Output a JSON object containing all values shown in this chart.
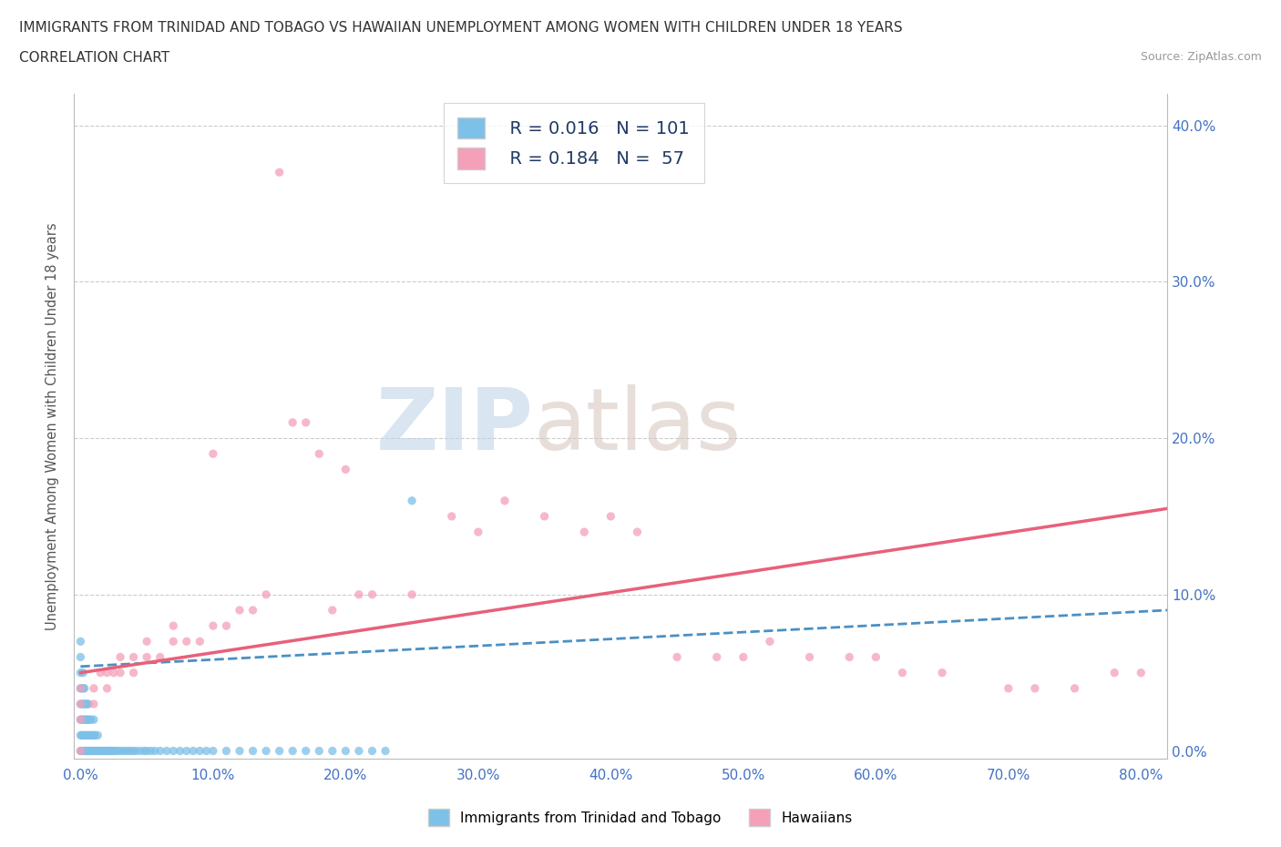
{
  "title_line1": "IMMIGRANTS FROM TRINIDAD AND TOBAGO VS HAWAIIAN UNEMPLOYMENT AMONG WOMEN WITH CHILDREN UNDER 18 YEARS",
  "title_line2": "CORRELATION CHART",
  "source": "Source: ZipAtlas.com",
  "ylabel_label": "Unemployment Among Women with Children Under 18 years",
  "legend_label1": "Immigrants from Trinidad and Tobago",
  "legend_label2": "Hawaiians",
  "R1": "0.016",
  "N1": "101",
  "R2": "0.184",
  "N2": "57",
  "blue_color": "#7dc0e8",
  "pink_color": "#f4a0b8",
  "trend_blue_color": "#4a90c4",
  "trend_pink_color": "#e8607a",
  "watermark_zip_color": "#c5d8ea",
  "watermark_atlas_color": "#d8c8c0",
  "blue_scatter_x": [
    0.0,
    0.0,
    0.0,
    0.0,
    0.0,
    0.0,
    0.0,
    0.0,
    0.001,
    0.001,
    0.001,
    0.001,
    0.001,
    0.002,
    0.002,
    0.002,
    0.002,
    0.002,
    0.002,
    0.003,
    0.003,
    0.003,
    0.003,
    0.003,
    0.004,
    0.004,
    0.004,
    0.004,
    0.005,
    0.005,
    0.005,
    0.005,
    0.006,
    0.006,
    0.006,
    0.006,
    0.007,
    0.007,
    0.007,
    0.008,
    0.008,
    0.008,
    0.009,
    0.009,
    0.01,
    0.01,
    0.01,
    0.011,
    0.011,
    0.012,
    0.013,
    0.013,
    0.014,
    0.015,
    0.016,
    0.017,
    0.018,
    0.019,
    0.02,
    0.021,
    0.022,
    0.023,
    0.024,
    0.025,
    0.027,
    0.028,
    0.03,
    0.032,
    0.034,
    0.036,
    0.038,
    0.04,
    0.042,
    0.045,
    0.048,
    0.05,
    0.053,
    0.056,
    0.06,
    0.065,
    0.07,
    0.075,
    0.08,
    0.085,
    0.09,
    0.095,
    0.1,
    0.11,
    0.12,
    0.13,
    0.14,
    0.15,
    0.16,
    0.17,
    0.18,
    0.19,
    0.2,
    0.21,
    0.22,
    0.23,
    0.25
  ],
  "blue_scatter_y": [
    0.0,
    0.01,
    0.02,
    0.03,
    0.04,
    0.05,
    0.06,
    0.07,
    0.0,
    0.01,
    0.02,
    0.03,
    0.04,
    0.0,
    0.01,
    0.02,
    0.03,
    0.04,
    0.05,
    0.0,
    0.01,
    0.02,
    0.03,
    0.04,
    0.0,
    0.01,
    0.02,
    0.03,
    0.0,
    0.01,
    0.02,
    0.03,
    0.0,
    0.01,
    0.02,
    0.03,
    0.0,
    0.01,
    0.02,
    0.0,
    0.01,
    0.02,
    0.0,
    0.01,
    0.0,
    0.01,
    0.02,
    0.0,
    0.01,
    0.0,
    0.0,
    0.01,
    0.0,
    0.0,
    0.0,
    0.0,
    0.0,
    0.0,
    0.0,
    0.0,
    0.0,
    0.0,
    0.0,
    0.0,
    0.0,
    0.0,
    0.0,
    0.0,
    0.0,
    0.0,
    0.0,
    0.0,
    0.0,
    0.0,
    0.0,
    0.0,
    0.0,
    0.0,
    0.0,
    0.0,
    0.0,
    0.0,
    0.0,
    0.0,
    0.0,
    0.0,
    0.0,
    0.0,
    0.0,
    0.0,
    0.0,
    0.0,
    0.0,
    0.0,
    0.0,
    0.0,
    0.0,
    0.0,
    0.0,
    0.0,
    0.16
  ],
  "pink_scatter_x": [
    0.0,
    0.0,
    0.0,
    0.0,
    0.01,
    0.01,
    0.015,
    0.02,
    0.02,
    0.025,
    0.03,
    0.03,
    0.04,
    0.04,
    0.05,
    0.05,
    0.06,
    0.07,
    0.07,
    0.08,
    0.09,
    0.1,
    0.1,
    0.11,
    0.12,
    0.13,
    0.14,
    0.15,
    0.16,
    0.17,
    0.18,
    0.19,
    0.2,
    0.21,
    0.22,
    0.25,
    0.28,
    0.3,
    0.32,
    0.35,
    0.38,
    0.4,
    0.42,
    0.45,
    0.48,
    0.5,
    0.52,
    0.55,
    0.58,
    0.6,
    0.62,
    0.65,
    0.7,
    0.72,
    0.75,
    0.78,
    0.8
  ],
  "pink_scatter_y": [
    0.0,
    0.02,
    0.03,
    0.04,
    0.03,
    0.04,
    0.05,
    0.04,
    0.05,
    0.05,
    0.05,
    0.06,
    0.05,
    0.06,
    0.06,
    0.07,
    0.06,
    0.07,
    0.08,
    0.07,
    0.07,
    0.08,
    0.19,
    0.08,
    0.09,
    0.09,
    0.1,
    0.37,
    0.21,
    0.21,
    0.19,
    0.09,
    0.18,
    0.1,
    0.1,
    0.1,
    0.15,
    0.14,
    0.16,
    0.15,
    0.14,
    0.15,
    0.14,
    0.06,
    0.06,
    0.06,
    0.07,
    0.06,
    0.06,
    0.06,
    0.05,
    0.05,
    0.04,
    0.04,
    0.04,
    0.05,
    0.05
  ],
  "xlim": [
    -0.005,
    0.82
  ],
  "ylim": [
    -0.005,
    0.42
  ],
  "xticks": [
    0.0,
    0.1,
    0.2,
    0.3,
    0.4,
    0.5,
    0.6,
    0.7,
    0.8
  ],
  "yticks": [
    0.0,
    0.1,
    0.2,
    0.3,
    0.4
  ],
  "blue_trend_x0": 0.0,
  "blue_trend_x1": 0.82,
  "blue_trend_y0": 0.054,
  "blue_trend_y1": 0.09,
  "pink_trend_x0": 0.0,
  "pink_trend_x1": 0.82,
  "pink_trend_y0": 0.05,
  "pink_trend_y1": 0.155
}
